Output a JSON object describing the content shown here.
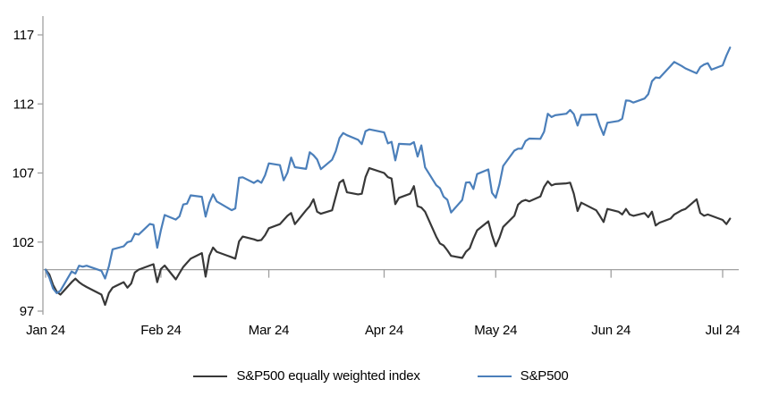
{
  "chart_data": {
    "type": "line",
    "title": "",
    "xlabel": "",
    "ylabel": "",
    "grid": "off",
    "legend_position": "bottom-center",
    "y_axis": {
      "ticks": [
        97,
        102,
        107,
        112,
        117
      ],
      "range": [
        97,
        117
      ],
      "axis_cross_value": 100
    },
    "x_ticks": [
      {
        "label": "Jan 24",
        "date": "01-01"
      },
      {
        "label": "Feb 24",
        "date": "02-01"
      },
      {
        "label": "Mar 24",
        "date": "03-01"
      },
      {
        "label": "Apr 24",
        "date": "04-01"
      },
      {
        "label": "May 24",
        "date": "05-01"
      },
      {
        "label": "Jun 24",
        "date": "06-01"
      },
      {
        "label": "Jul 24",
        "date": "07-01"
      }
    ],
    "dates": [
      "01-01",
      "01-02",
      "01-03",
      "01-04",
      "01-05",
      "01-08",
      "01-09",
      "01-10",
      "01-11",
      "01-12",
      "01-16",
      "01-17",
      "01-18",
      "01-19",
      "01-22",
      "01-23",
      "01-24",
      "01-25",
      "01-26",
      "01-29",
      "01-30",
      "01-31",
      "02-01",
      "02-02",
      "02-05",
      "02-06",
      "02-07",
      "02-08",
      "02-09",
      "02-12",
      "02-13",
      "02-14",
      "02-15",
      "02-16",
      "02-20",
      "02-21",
      "02-22",
      "02-23",
      "02-26",
      "02-27",
      "02-28",
      "02-29",
      "03-01",
      "03-04",
      "03-05",
      "03-06",
      "03-07",
      "03-08",
      "03-11",
      "03-12",
      "03-13",
      "03-14",
      "03-15",
      "03-18",
      "03-19",
      "03-20",
      "03-21",
      "03-22",
      "03-25",
      "03-26",
      "03-27",
      "03-28",
      "04-01",
      "04-02",
      "04-03",
      "04-04",
      "04-05",
      "04-08",
      "04-09",
      "04-10",
      "04-11",
      "04-12",
      "04-15",
      "04-16",
      "04-17",
      "04-18",
      "04-19",
      "04-22",
      "04-23",
      "04-24",
      "04-25",
      "04-26",
      "04-29",
      "04-30",
      "05-01",
      "05-02",
      "05-03",
      "05-06",
      "05-07",
      "05-08",
      "05-09",
      "05-10",
      "05-13",
      "05-14",
      "05-15",
      "05-16",
      "05-17",
      "05-20",
      "05-21",
      "05-22",
      "05-23",
      "05-24",
      "05-28",
      "05-29",
      "05-30",
      "05-31",
      "06-03",
      "06-04",
      "06-05",
      "06-06",
      "06-07",
      "06-10",
      "06-11",
      "06-12",
      "06-13",
      "06-14",
      "06-17",
      "06-18",
      "06-20",
      "06-21",
      "06-24",
      "06-25",
      "06-26",
      "06-27",
      "06-28",
      "07-01",
      "07-02",
      "07-03"
    ],
    "series": [
      {
        "name": "S&P500 equally weighted index",
        "color": "#383838",
        "values": [
          100,
          99.65,
          98.9,
          98.4,
          98.2,
          99.1,
          99.35,
          99.1,
          98.9,
          98.75,
          98.2,
          97.45,
          98.3,
          98.7,
          99.1,
          98.7,
          99.0,
          99.8,
          100.0,
          100.3,
          100.4,
          99.1,
          100.05,
          100.3,
          99.3,
          99.75,
          100.2,
          100.5,
          100.8,
          101.2,
          99.5,
          101.0,
          101.6,
          101.3,
          100.9,
          100.8,
          102.05,
          102.4,
          102.2,
          102.1,
          102.15,
          102.5,
          103.0,
          103.3,
          103.6,
          103.9,
          104.1,
          103.3,
          104.3,
          104.6,
          105.1,
          104.2,
          104.05,
          104.3,
          105.3,
          106.3,
          106.5,
          105.6,
          105.45,
          105.5,
          106.7,
          107.35,
          107.0,
          106.7,
          106.6,
          104.75,
          105.2,
          105.5,
          106.05,
          104.6,
          104.5,
          104.2,
          102.4,
          101.9,
          101.75,
          101.4,
          101.0,
          100.85,
          101.3,
          101.55,
          102.25,
          102.85,
          103.5,
          102.5,
          101.7,
          102.3,
          103.1,
          103.9,
          104.7,
          104.95,
          105.05,
          104.95,
          105.3,
          106.0,
          106.4,
          106.1,
          106.2,
          106.25,
          106.3,
          105.5,
          104.25,
          104.85,
          104.3,
          103.9,
          103.45,
          104.4,
          104.2,
          104.0,
          104.4,
          104.0,
          103.9,
          104.1,
          103.8,
          104.2,
          103.2,
          103.4,
          103.7,
          104.0,
          104.3,
          104.4,
          105.1,
          104.1,
          103.9,
          104.0,
          103.9,
          103.6,
          103.3,
          103.7
        ]
      },
      {
        "name": "S&P500",
        "color": "#4b7fba",
        "values": [
          100,
          99.43,
          98.64,
          98.3,
          98.48,
          99.87,
          99.72,
          100.29,
          100.22,
          100.29,
          99.92,
          99.36,
          100.23,
          101.47,
          101.69,
          101.99,
          102.07,
          102.61,
          102.54,
          103.31,
          103.25,
          101.59,
          102.86,
          103.96,
          103.63,
          103.87,
          104.72,
          104.78,
          105.38,
          105.28,
          103.84,
          104.84,
          105.45,
          104.94,
          104.31,
          104.44,
          106.65,
          106.69,
          106.28,
          106.46,
          106.29,
          106.84,
          107.7,
          107.57,
          106.47,
          107.02,
          108.12,
          107.42,
          107.3,
          108.5,
          108.29,
          107.98,
          107.28,
          107.96,
          108.57,
          109.53,
          109.89,
          109.74,
          109.4,
          109.09,
          110.03,
          110.16,
          109.94,
          109.14,
          109.26,
          107.91,
          109.11,
          109.07,
          109.23,
          108.19,
          109.0,
          107.41,
          106.12,
          105.9,
          105.29,
          105.06,
          104.14,
          105.05,
          106.31,
          106.33,
          105.84,
          106.92,
          107.26,
          105.57,
          105.21,
          106.17,
          107.51,
          108.62,
          108.76,
          108.76,
          109.31,
          109.49,
          109.47,
          110.0,
          111.29,
          111.05,
          111.18,
          111.29,
          111.56,
          111.26,
          110.44,
          111.21,
          111.24,
          110.42,
          109.76,
          110.64,
          110.77,
          110.93,
          112.25,
          112.23,
          112.1,
          112.39,
          112.7,
          113.65,
          113.92,
          113.88,
          114.75,
          115.04,
          114.75,
          114.57,
          114.22,
          114.67,
          114.85,
          114.95,
          114.48,
          114.79,
          115.5,
          116.08
        ]
      }
    ],
    "legend": [
      {
        "label": "S&P500 equally weighted index",
        "color": "#383838"
      },
      {
        "label": "S&P500",
        "color": "#4b7fba"
      }
    ]
  },
  "colors": {
    "background": "#ffffff",
    "axis": "#a0a0a0",
    "text": "#000000",
    "equal_weight_line": "#383838",
    "sp500_line": "#4b7fba"
  }
}
